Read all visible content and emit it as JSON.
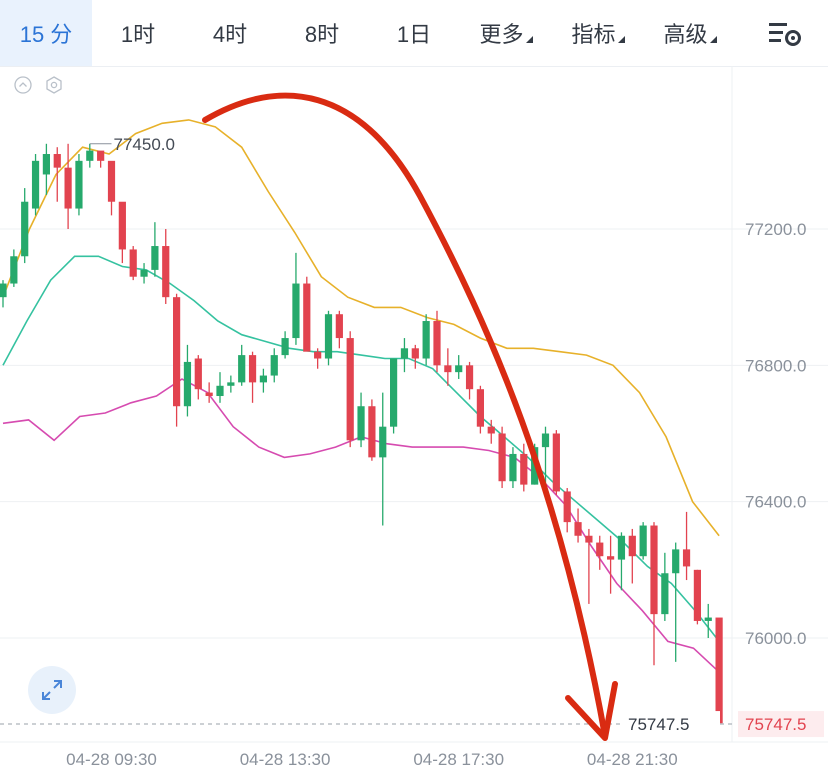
{
  "toolbar": {
    "tabs": [
      {
        "label": "15 分",
        "active": true
      },
      {
        "label": "1时"
      },
      {
        "label": "4时"
      },
      {
        "label": "8时"
      },
      {
        "label": "1日"
      },
      {
        "label": "更多",
        "dropdown": true
      },
      {
        "label": "指标",
        "dropdown": true
      },
      {
        "label": "高级",
        "dropdown": true
      }
    ],
    "settings_icon": "chart-settings-icon"
  },
  "colors": {
    "up": "#26a96c",
    "down": "#e2434f",
    "ma_upper": "#e7b12a",
    "ma_mid": "#35c2a0",
    "ma_lower": "#d64bb0",
    "arrow": "#d92b12",
    "accent": "#2b74d6"
  },
  "chart_data": {
    "type": "candlestick",
    "y_ticks": [
      "77200.0",
      "76800.0",
      "76400.0",
      "76000.0"
    ],
    "y_tick_values": [
      77200,
      76800,
      76400,
      76000
    ],
    "ylim": [
      75700,
      77700
    ],
    "x_tick_labels": [
      "04-28 09:30",
      "04-28 13:30",
      "04-28 17:30",
      "04-28 21:30"
    ],
    "x_tick_index": [
      10,
      26,
      42,
      58
    ],
    "high_label": "77450.0",
    "high_value": 77450,
    "current_price_label": "75747.5",
    "current_price": 75747.5,
    "candles": [
      [
        77000,
        77050,
        76970,
        77040
      ],
      [
        77040,
        77140,
        77030,
        77120
      ],
      [
        77120,
        77320,
        77100,
        77280
      ],
      [
        77260,
        77420,
        77240,
        77400
      ],
      [
        77360,
        77450,
        77300,
        77420
      ],
      [
        77420,
        77440,
        77280,
        77380
      ],
      [
        77380,
        77450,
        77200,
        77260
      ],
      [
        77260,
        77420,
        77240,
        77400
      ],
      [
        77400,
        77450,
        77380,
        77430
      ],
      [
        77430,
        77420,
        77380,
        77400
      ],
      [
        77400,
        77380,
        77240,
        77280
      ],
      [
        77280,
        77260,
        77100,
        77140
      ],
      [
        77140,
        77150,
        77050,
        77060
      ],
      [
        77060,
        77100,
        77040,
        77080
      ],
      [
        77080,
        77220,
        77060,
        77150
      ],
      [
        77150,
        77200,
        76980,
        77000
      ],
      [
        77000,
        77010,
        76620,
        76680
      ],
      [
        76680,
        76860,
        76650,
        76810
      ],
      [
        76820,
        76830,
        76700,
        76730
      ],
      [
        76720,
        76750,
        76690,
        76710
      ],
      [
        76710,
        76780,
        76690,
        76740
      ],
      [
        76740,
        76770,
        76720,
        76750
      ],
      [
        76750,
        76860,
        76740,
        76830
      ],
      [
        76830,
        76840,
        76690,
        76750
      ],
      [
        76750,
        76790,
        76720,
        76770
      ],
      [
        76770,
        76850,
        76750,
        76830
      ],
      [
        76830,
        76900,
        76820,
        76880
      ],
      [
        76880,
        77130,
        76860,
        77040
      ],
      [
        77040,
        77060,
        76850,
        76840
      ],
      [
        76840,
        76850,
        76790,
        76820
      ],
      [
        76820,
        76960,
        76800,
        76950
      ],
      [
        76950,
        76960,
        76850,
        76880
      ],
      [
        76880,
        76900,
        76560,
        76580
      ],
      [
        76580,
        76720,
        76560,
        76680
      ],
      [
        76680,
        76700,
        76520,
        76530
      ],
      [
        76530,
        76720,
        76330,
        76620
      ],
      [
        76620,
        76820,
        76600,
        76820
      ],
      [
        76820,
        76880,
        76780,
        76850
      ],
      [
        76850,
        76860,
        76790,
        76820
      ],
      [
        76820,
        76950,
        76800,
        76930
      ],
      [
        76930,
        76960,
        76780,
        76800
      ],
      [
        76800,
        76850,
        76740,
        76780
      ],
      [
        76780,
        76830,
        76760,
        76800
      ],
      [
        76800,
        76810,
        76700,
        76730
      ],
      [
        76730,
        76740,
        76600,
        76620
      ],
      [
        76620,
        76640,
        76570,
        76600
      ],
      [
        76600,
        76620,
        76440,
        76460
      ],
      [
        76460,
        76560,
        76440,
        76540
      ],
      [
        76540,
        76570,
        76430,
        76450
      ],
      [
        76450,
        76570,
        76450,
        76560
      ],
      [
        76560,
        76620,
        76450,
        76600
      ],
      [
        76600,
        76610,
        76420,
        76430
      ],
      [
        76430,
        76440,
        76310,
        76340
      ],
      [
        76340,
        76380,
        76280,
        76300
      ],
      [
        76300,
        76320,
        76100,
        76280
      ],
      [
        76280,
        76300,
        76200,
        76240
      ],
      [
        76240,
        76300,
        76130,
        76230
      ],
      [
        76230,
        76310,
        76140,
        76300
      ],
      [
        76300,
        76320,
        76160,
        76240
      ],
      [
        76240,
        76340,
        76230,
        76330
      ],
      [
        76330,
        76340,
        75920,
        76070
      ],
      [
        76070,
        76250,
        76050,
        76190
      ],
      [
        76190,
        76280,
        75930,
        76260
      ],
      [
        76260,
        76370,
        76170,
        76210
      ],
      [
        76200,
        76200,
        76040,
        76050
      ],
      [
        76050,
        76100,
        76000,
        76060
      ],
      [
        76060,
        76040,
        75740,
        75750
      ]
    ],
    "ma_upper": [
      77000,
      77200,
      77360,
      77440,
      77420,
      77480,
      77510,
      77520,
      77500,
      77440,
      77310,
      77190,
      77060,
      77000,
      76970,
      76970,
      76940,
      76920,
      76880,
      76850,
      76850,
      76840,
      76830,
      76800,
      76720,
      76590,
      76400,
      76300
    ],
    "ma_mid": [
      76800,
      76930,
      77050,
      77120,
      77120,
      77090,
      77080,
      77040,
      76990,
      76930,
      76890,
      76870,
      76850,
      76840,
      76840,
      76830,
      76820,
      76820,
      76790,
      76720,
      76650,
      76590,
      76530,
      76460,
      76400,
      76340,
      76280,
      76210,
      76160,
      76080,
      75990
    ],
    "ma_lower": [
      76630,
      76640,
      76580,
      76650,
      76660,
      76690,
      76710,
      76760,
      76720,
      76620,
      76560,
      76530,
      76540,
      76560,
      76590,
      76570,
      76560,
      76560,
      76560,
      76550,
      76530,
      76470,
      76390,
      76270,
      76160,
      76080,
      75990,
      75970,
      75900
    ]
  }
}
